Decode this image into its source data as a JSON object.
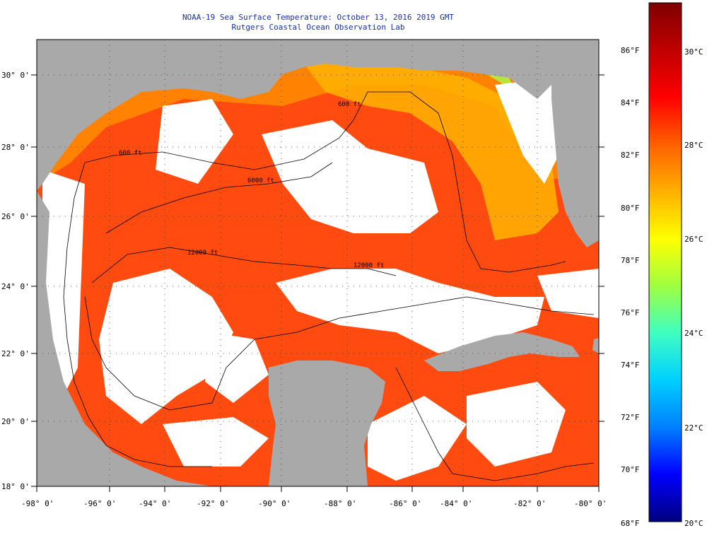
{
  "title": {
    "line1": "NOAA-19 Sea Surface Temperature:  October 13, 2016 2019 GMT",
    "line2": "Rutgers Coastal Ocean Observation Lab"
  },
  "map": {
    "lat_labels": [
      "30° 0'",
      "28° 0'",
      "26° 0'",
      "24° 0'",
      "22° 0'",
      "20° 0'",
      "18° 0'"
    ],
    "lon_labels": [
      "-98° 0'",
      "-96° 0'",
      "-94° 0'",
      "-92° 0'",
      "-90° 0'",
      "-88° 0'",
      "-86° 0'",
      "-84° 0'",
      "-82° 0'",
      "-80° 0'"
    ],
    "contour_labels": [
      "600 ft",
      "600 ft",
      "6000 ft",
      "12000 ft",
      "12000 ft"
    ],
    "colors": {
      "land": "#a9a9a9",
      "cloud": "#ffffff",
      "warm": "#ff3a00",
      "mid": "#ff8c00",
      "cool": "#ffd700"
    }
  },
  "colorbar": {
    "f_labels": [
      "86°F",
      "84°F",
      "82°F",
      "80°F",
      "78°F",
      "76°F",
      "74°F",
      "72°F",
      "70°F",
      "68°F"
    ],
    "c_labels": [
      "30°C",
      "28°C",
      "26°C",
      "24°C",
      "22°C",
      "20°C"
    ],
    "stops": [
      "#000080",
      "#0000ff",
      "#0080ff",
      "#00d0ff",
      "#40ffc0",
      "#a0ff40",
      "#ffff00",
      "#ffb000",
      "#ff6000",
      "#ff0000",
      "#c00000",
      "#800000"
    ]
  }
}
